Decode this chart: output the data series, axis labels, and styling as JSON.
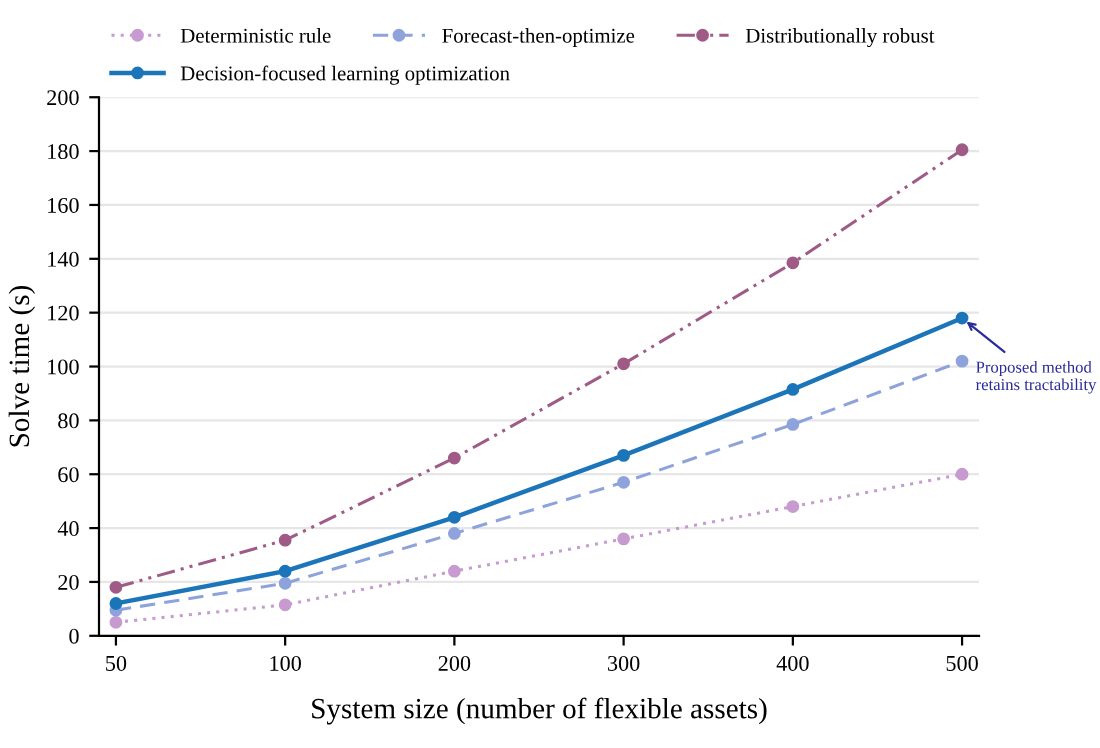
{
  "chart_data": {
    "type": "line",
    "xlabel": "System size (number of flexible assets)",
    "ylabel": "Solve time (s)",
    "categories": [
      "50",
      "100",
      "200",
      "300",
      "400",
      "500"
    ],
    "series": [
      {
        "name": "Deterministic rule",
        "color": "#c79bd0",
        "line_style": "dotted",
        "values": [
          5,
          11.5,
          24,
          36,
          48,
          60
        ]
      },
      {
        "name": "Forecast-then-optimize",
        "color": "#8ea3dc",
        "line_style": "dashed",
        "values": [
          9.5,
          19.5,
          38,
          57,
          78.5,
          102
        ]
      },
      {
        "name": "Distributionally robust",
        "color": "#a05a86",
        "line_style": "dashdotdot",
        "values": [
          18,
          35.5,
          66,
          101,
          138.5,
          180.5
        ]
      },
      {
        "name": "Decision-focused learning optimization",
        "color": "#1b75b8",
        "line_style": "solid",
        "values": [
          12,
          24,
          44,
          67,
          91.5,
          118
        ]
      }
    ],
    "ylim": [
      0,
      200
    ],
    "yticks": [
      0,
      20,
      40,
      60,
      80,
      100,
      120,
      140,
      160,
      180,
      200
    ],
    "grid": "y",
    "legend": "top left",
    "marker": "circle",
    "annotations": [
      {
        "text": "Proposed method\nretains tractability",
        "x": "500",
        "y": 118
      }
    ]
  }
}
